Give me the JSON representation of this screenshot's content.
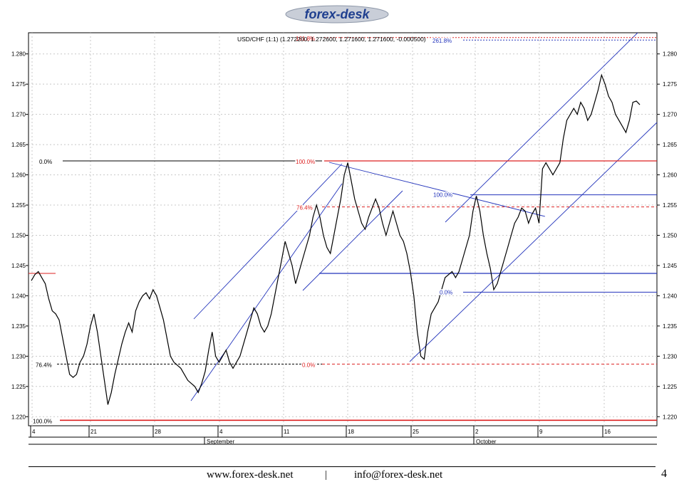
{
  "brand": {
    "logo_text": "forex-desk"
  },
  "footer": {
    "website": "www.forex-desk.net",
    "separator": "|",
    "email": "info@forex-desk.net",
    "page_number": "4"
  },
  "chart_data": {
    "type": "line",
    "title": "USD/CHF (1:1) (1.272200, 1.272600, 1.271600, 1.271600, -0.000500)",
    "ylim": [
      1.2185,
      1.2835
    ],
    "y_ticks": [
      "1.280",
      "1.275",
      "1.270",
      "1.265",
      "1.260",
      "1.255",
      "1.250",
      "1.245",
      "1.240",
      "1.235",
      "1.230",
      "1.225",
      "1.220"
    ],
    "x_ticks": [
      "4",
      "21",
      "28",
      "4",
      "11",
      "18",
      "25",
      "2",
      "9",
      "16"
    ],
    "month_labels": [
      "September",
      "October"
    ],
    "grid": true,
    "colors": {
      "price": "#000000",
      "channel": "#2233bb",
      "fib_red": "#dd2222",
      "fib_blue": "#2233bb",
      "axis": "#000000"
    },
    "series": [
      {
        "values": [
          1.2425,
          1.2435,
          1.244,
          1.243,
          1.242,
          1.2395,
          1.2375,
          1.237,
          1.236,
          1.233,
          1.23,
          1.227,
          1.2265,
          1.227,
          1.229,
          1.23,
          1.232,
          1.235,
          1.237,
          1.234,
          1.23,
          1.226,
          1.222,
          1.224,
          1.227,
          1.2295,
          1.232,
          1.234,
          1.2355,
          1.234,
          1.2375,
          1.239,
          1.24,
          1.2405,
          1.2395,
          1.241,
          1.24,
          1.238,
          1.236,
          1.233,
          1.23,
          1.229,
          1.2285,
          1.228,
          1.227,
          1.226,
          1.2255,
          1.225,
          1.224,
          1.2255,
          1.2275,
          1.231,
          1.234,
          1.23,
          1.229,
          1.23,
          1.231,
          1.229,
          1.228,
          1.229,
          1.23,
          1.232,
          1.234,
          1.236,
          1.238,
          1.237,
          1.235,
          1.234,
          1.235,
          1.237,
          1.24,
          1.243,
          1.246,
          1.249,
          1.247,
          1.245,
          1.242,
          1.244,
          1.246,
          1.248,
          1.25,
          1.253,
          1.255,
          1.253,
          1.25,
          1.248,
          1.247,
          1.25,
          1.253,
          1.256,
          1.26,
          1.262,
          1.259,
          1.256,
          1.254,
          1.252,
          1.251,
          1.253,
          1.2545,
          1.256,
          1.2545,
          1.252,
          1.25,
          1.252,
          1.254,
          1.252,
          1.25,
          1.249,
          1.247,
          1.244,
          1.24,
          1.234,
          1.23,
          1.2295,
          1.234,
          1.237,
          1.238,
          1.239,
          1.241,
          1.243,
          1.2435,
          1.244,
          1.243,
          1.244,
          1.246,
          1.248,
          1.25,
          1.254,
          1.2565,
          1.254,
          1.25,
          1.247,
          1.2445,
          1.241,
          1.242,
          1.244,
          1.246,
          1.248,
          1.25,
          1.252,
          1.253,
          1.2545,
          1.254,
          1.252,
          1.2535,
          1.2545,
          1.252,
          1.261,
          1.262,
          1.261,
          1.26,
          1.261,
          1.262,
          1.266,
          1.269,
          1.27,
          1.271,
          1.27,
          1.272,
          1.271,
          1.269,
          1.27,
          1.272,
          1.274,
          1.2765,
          1.275,
          1.273,
          1.272,
          1.27,
          1.269,
          1.268,
          1.267,
          1.269,
          1.272,
          1.2722,
          1.2716
        ]
      }
    ],
    "annotations": [
      {
        "text": "161.8%",
        "y": 1.2827,
        "color": "#dd2222"
      },
      {
        "text": "261.8%",
        "y": 1.2823,
        "color": "#2233bb"
      },
      {
        "text": "100.0%",
        "y": 1.2623,
        "color": "#dd2222"
      },
      {
        "text": "76.4%",
        "y": 1.2547,
        "color": "#dd2222"
      },
      {
        "text": "0.0%",
        "y": 1.2287,
        "color": "#dd2222"
      },
      {
        "text": "100.0%",
        "y": 1.2567,
        "color": "#2233bb"
      },
      {
        "text": "0.0%",
        "y": 1.2406,
        "color": "#2233bb"
      },
      {
        "text": "0.0%",
        "y": 1.2623,
        "color": "#000000"
      },
      {
        "text": "76.4%",
        "y": 1.2287,
        "color": "#000000"
      },
      {
        "text": "100.0%",
        "y": 1.2194,
        "color": "#000000"
      }
    ]
  }
}
